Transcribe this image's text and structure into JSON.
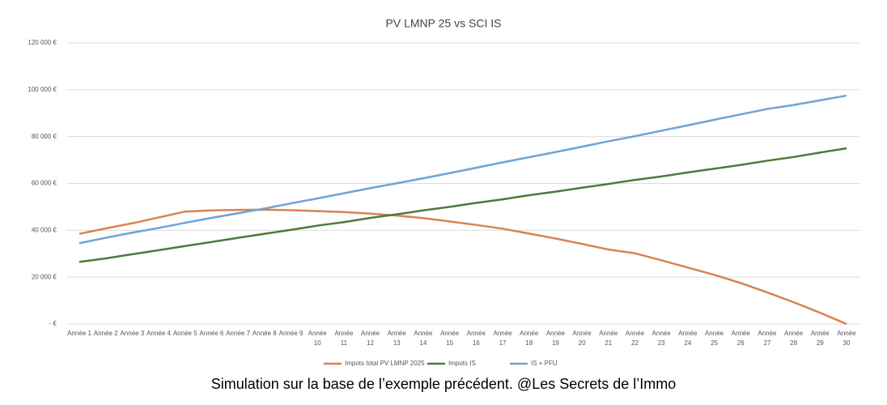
{
  "chart_data": {
    "type": "line",
    "title": "PV LMNP 25 vs SCI IS",
    "categories": [
      "Année 1",
      "Année 2",
      "Année 3",
      "Année 4",
      "Année 5",
      "Année 6",
      "Année 7",
      "Année 8",
      "Année 9",
      "Année 10",
      "Année 11",
      "Année 12",
      "Année 13",
      "Année 14",
      "Année 15",
      "Année 16",
      "Année 17",
      "Année 18",
      "Année 19",
      "Année 20",
      "Année 21",
      "Année 22",
      "Année 23",
      "Année 24",
      "Année 25",
      "Année 26",
      "Année 27",
      "Année 28",
      "Année 29",
      "Année 30"
    ],
    "series": [
      {
        "name": "Impots total PV LMNP 2025",
        "color": "#d9824f",
        "values": [
          38500,
          40800,
          43000,
          45500,
          48000,
          48500,
          48700,
          48800,
          48600,
          48200,
          47800,
          47100,
          46300,
          45200,
          43800,
          42300,
          40700,
          38600,
          36500,
          34200,
          31800,
          30200,
          27200,
          24100,
          21000,
          17500,
          13500,
          9300,
          4800,
          0
        ]
      },
      {
        "name": "Impots IS",
        "color": "#4d7a3a",
        "values": [
          26500,
          28000,
          29800,
          31500,
          33300,
          35000,
          36800,
          38500,
          40200,
          42000,
          43500,
          45300,
          46800,
          48500,
          50000,
          51700,
          53200,
          55000,
          56500,
          58200,
          59800,
          61500,
          63000,
          64700,
          66300,
          67900,
          69700,
          71300,
          73200,
          75000
        ]
      },
      {
        "name": "IS + PFU",
        "color": "#6fa3d4",
        "values": [
          34500,
          36800,
          39000,
          41000,
          43200,
          45300,
          47300,
          49300,
          51500,
          53600,
          55800,
          58000,
          60100,
          62200,
          64400,
          66700,
          69000,
          71200,
          73400,
          75700,
          78000,
          80200,
          82500,
          84800,
          87200,
          89500,
          91800,
          93500,
          95500,
          97500
        ]
      }
    ],
    "ylim": [
      0,
      120000
    ],
    "yticks": [
      {
        "value": 0,
        "label": "-  €"
      },
      {
        "value": 20000,
        "label": "20 000 €"
      },
      {
        "value": 40000,
        "label": "40 000 €"
      },
      {
        "value": 60000,
        "label": "60 000 €"
      },
      {
        "value": 80000,
        "label": "80 000 €"
      },
      {
        "value": 100000,
        "label": "100 000 €"
      },
      {
        "value": 120000,
        "label": "120 000 €"
      }
    ],
    "grid": true,
    "legend": "bottom",
    "caption": "Simulation sur la base de l’exemple précédent. @Les Secrets de l’Immo"
  }
}
